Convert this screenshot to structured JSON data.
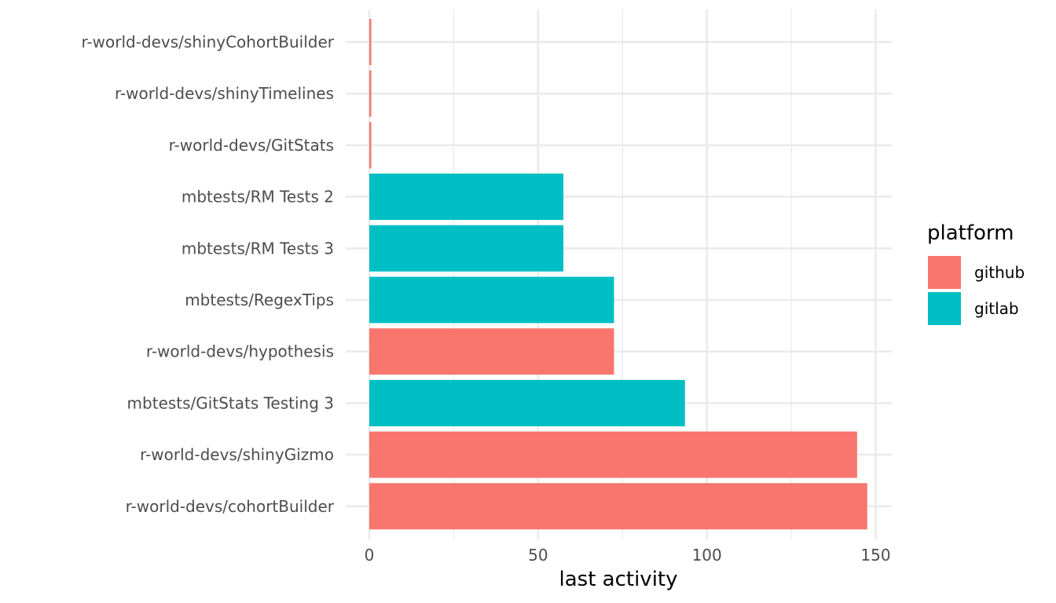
{
  "chart_data": {
    "type": "bar",
    "orientation": "horizontal",
    "title": "",
    "xlabel": "last activity",
    "ylabel": "",
    "xlim": [
      0,
      155
    ],
    "xticks": [
      0,
      50,
      100,
      150
    ],
    "grid": true,
    "categories": [
      "r-world-devs/shinyCohortBuilder",
      "r-world-devs/shinyTimelines",
      "r-world-devs/GitStats",
      "mbtests/RM Tests 2",
      "mbtests/RM Tests 3",
      "mbtests/RegexTips",
      "r-world-devs/hypothesis",
      "mbtests/GitStats Testing 3",
      "r-world-devs/shinyGizmo",
      "r-world-devs/cohortBuilder"
    ],
    "values": [
      0.6,
      0.6,
      0.6,
      57.5,
      57.5,
      72.5,
      72.5,
      93.5,
      144.5,
      147.5
    ],
    "groups": [
      "github",
      "github",
      "github",
      "gitlab",
      "gitlab",
      "gitlab",
      "github",
      "gitlab",
      "github",
      "github"
    ],
    "legend": {
      "title": "platform",
      "position": "right",
      "entries": [
        {
          "name": "github",
          "color": "#F8766D"
        },
        {
          "name": "gitlab",
          "color": "#00BFC4"
        }
      ]
    }
  }
}
